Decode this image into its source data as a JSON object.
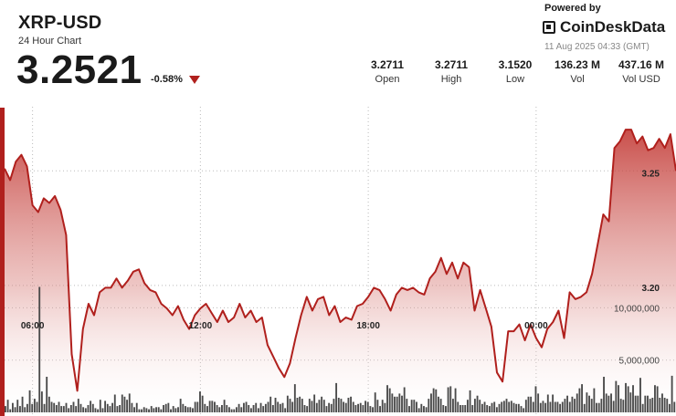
{
  "header": {
    "pair": "XRP-USD",
    "subtitle": "24 Hour Chart",
    "price": "3.2521",
    "change": "-0.58%"
  },
  "stats": [
    {
      "value": "3.2711",
      "label": "Open"
    },
    {
      "value": "3.2711",
      "label": "High"
    },
    {
      "value": "3.1520",
      "label": "Low"
    },
    {
      "value": "136.23 M",
      "label": "Vol"
    },
    {
      "value": "437.16 M",
      "label": "Vol USD"
    }
  ],
  "branding": {
    "powered_by": "Powered by",
    "name": "CoinDeskData",
    "timestamp": "11 Aug 2025 04:33 (GMT)"
  },
  "colors": {
    "accent": "#b0201d",
    "volume_bar": "#4a4a4a",
    "fill_top": "#c0302b"
  },
  "chart_data": [
    {
      "type": "area",
      "title": "",
      "x_tick_labels": [
        "06:00",
        "12:00",
        "18:00",
        "00:00"
      ],
      "x_tick_index": [
        5,
        35,
        65,
        95
      ],
      "y_tick_labels": [
        "3.25",
        "3.20"
      ],
      "y_ticks": [
        3.25,
        3.2
      ],
      "ylim": [
        3.143,
        3.278
      ],
      "grid": "dotted",
      "values": [
        3.251,
        3.246,
        3.254,
        3.257,
        3.252,
        3.235,
        3.232,
        3.238,
        3.236,
        3.239,
        3.233,
        3.222,
        3.17,
        3.154,
        3.181,
        3.192,
        3.187,
        3.197,
        3.199,
        3.199,
        3.203,
        3.199,
        3.202,
        3.206,
        3.207,
        3.201,
        3.198,
        3.197,
        3.192,
        3.19,
        3.187,
        3.191,
        3.185,
        3.181,
        3.187,
        3.19,
        3.192,
        3.188,
        3.184,
        3.189,
        3.184,
        3.186,
        3.192,
        3.186,
        3.189,
        3.184,
        3.186,
        3.174,
        3.169,
        3.164,
        3.16,
        3.166,
        3.177,
        3.187,
        3.195,
        3.189,
        3.194,
        3.195,
        3.187,
        3.191,
        3.184,
        3.186,
        3.185,
        3.191,
        3.192,
        3.195,
        3.199,
        3.198,
        3.194,
        3.189,
        3.196,
        3.199,
        3.198,
        3.199,
        3.197,
        3.196,
        3.203,
        3.206,
        3.212,
        3.205,
        3.21,
        3.203,
        3.21,
        3.208,
        3.189,
        3.198,
        3.19,
        3.182,
        3.162,
        3.158,
        3.18,
        3.18,
        3.183,
        3.176,
        3.183,
        3.177,
        3.173,
        3.181,
        3.184,
        3.189,
        3.177,
        3.197,
        3.194,
        3.195,
        3.197,
        3.205,
        3.218,
        3.231,
        3.228,
        3.26,
        3.263,
        3.268,
        3.268,
        3.262,
        3.265,
        3.259,
        3.26,
        3.264,
        3.26,
        3.266,
        3.25
      ]
    },
    {
      "type": "bar",
      "title": "",
      "y_tick_labels": [
        "10,000,000",
        "5,000,000"
      ],
      "y_ticks": [
        10000000,
        5000000
      ],
      "ylim": [
        0,
        18500000
      ],
      "values": [
        600000,
        1200000,
        300000,
        900000,
        500000,
        1200000,
        600000,
        1500000,
        500000,
        800000,
        2100000,
        800000,
        1300000,
        1000000,
        12000000,
        2000000,
        800000,
        3400000,
        1500000,
        1000000,
        900000,
        700000,
        1000000,
        600000,
        600000,
        900000,
        400000,
        700000,
        1000000,
        600000,
        1300000,
        800000,
        500000,
        400000,
        700000,
        1100000,
        800000,
        400000,
        300000,
        1200000,
        400000,
        1100000,
        800000,
        600000,
        900000,
        1700000,
        600000,
        700000,
        1700000,
        1500000,
        1200000,
        1800000,
        900000,
        500000,
        900000,
        300000,
        300000,
        500000,
        400000,
        300000,
        600000,
        400000,
        500000,
        500000,
        300000,
        700000,
        800000,
        900000,
        300000,
        600000,
        400000,
        500000,
        1300000,
        800000,
        600000,
        500000,
        500000,
        400000,
        1000000,
        1000000,
        2000000,
        1600000,
        800000,
        600000,
        1100000,
        1100000,
        1000000,
        700000,
        500000,
        700000,
        1200000,
        700000,
        500000,
        300000,
        300000,
        500000,
        800000,
        500000,
        900000,
        1000000,
        700000,
        400000,
        700000,
        900000,
        400000,
        900000,
        600000,
        800000,
        1000000,
        1500000,
        700000,
        1400000,
        1000000,
        800000,
        900000,
        400000,
        1600000,
        1300000,
        1000000,
        2700000,
        1400000,
        1500000,
        1300000,
        700000,
        600000,
        1300000,
        1100000,
        1700000,
        900000,
        1200000,
        1500000,
        1200000,
        600000,
        900000,
        800000,
        1300000,
        2800000,
        1400000,
        1300000,
        1000000,
        900000,
        1400000,
        1500000,
        1000000,
        700000,
        800000,
        900000,
        700000,
        1100000,
        1000000,
        600000,
        500000,
        1900000,
        1200000,
        600000,
        1200000,
        900000,
        2600000,
        2300000,
        1800000,
        1500000,
        1500000,
        1800000,
        1600000,
        2400000,
        1300000,
        600000,
        1200000,
        1200000,
        1000000,
        400000,
        800000,
        600000,
        500000,
        1300000,
        1800000,
        2300000,
        2200000,
        1500000,
        1300000,
        700000,
        600000,
        2400000,
        2500000,
        1300000,
        2300000,
        1000000,
        700000,
        700000,
        700000,
        1200000,
        2100000,
        700000,
        1300000,
        1600000,
        1200000,
        800000,
        1000000,
        700000,
        600000,
        900000,
        1000000,
        500000,
        800000,
        1000000,
        1100000,
        1300000,
        1000000,
        1100000,
        900000,
        800000,
        800000,
        600000,
        400000,
        1200000,
        1500000,
        1500000,
        1000000,
        2500000,
        1800000,
        900000,
        1100000,
        900000,
        1700000,
        1000000,
        1700000,
        1000000,
        1000000,
        800000,
        1000000,
        1300000,
        1600000,
        1000000,
        1500000,
        1300000,
        1800000,
        2300000,
        2700000,
        800000,
        1900000,
        1600000,
        1300000,
        2300000,
        900000,
        900000,
        1300000,
        3400000,
        1800000,
        1600000,
        1800000,
        1100000,
        3000000,
        2600000,
        1300000,
        1200000,
        2800000,
        2500000,
        1900000,
        2600000,
        1600000,
        1600000,
        3300000,
        800000,
        1600000,
        1600000,
        1300000,
        1400000,
        2600000,
        2500000,
        1400000,
        1800000,
        1400000,
        1300000,
        800000,
        3500000,
        1000000
      ]
    }
  ]
}
